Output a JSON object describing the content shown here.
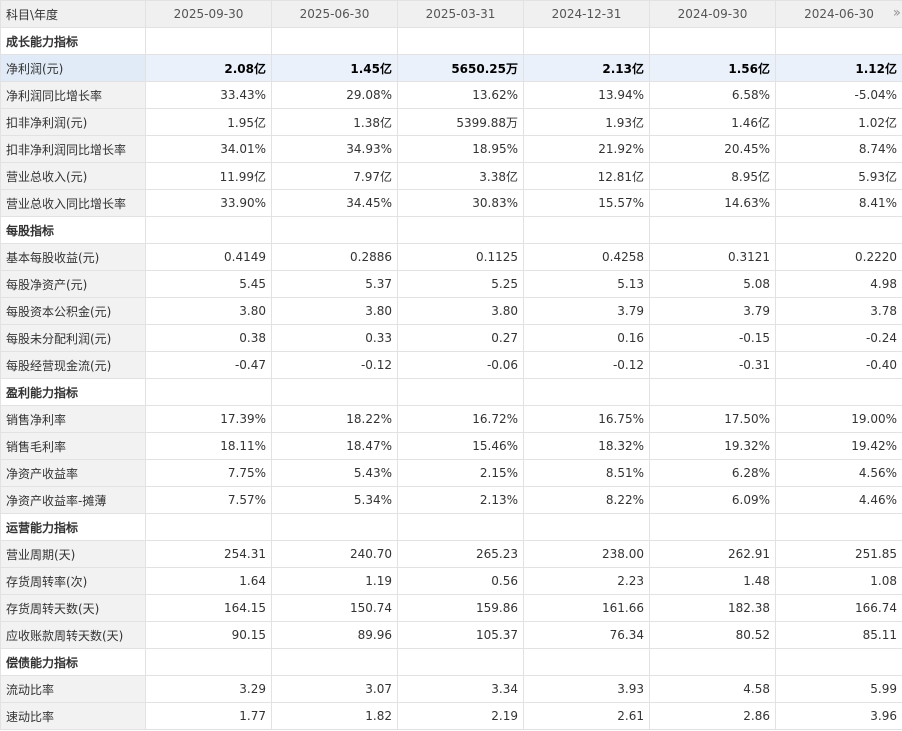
{
  "header": {
    "label": "科目\\年度",
    "periods": [
      "2025-09-30",
      "2025-06-30",
      "2025-03-31",
      "2024-12-31",
      "2024-09-30",
      "2024-06-30"
    ],
    "more_icon": "double-chevron-right-icon"
  },
  "rows": [
    {
      "type": "section",
      "label": "成长能力指标"
    },
    {
      "type": "data",
      "label": "净利润(元)",
      "highlight": true,
      "values": [
        "2.08亿",
        "1.45亿",
        "5650.25万",
        "2.13亿",
        "1.56亿",
        "1.12亿"
      ]
    },
    {
      "type": "data",
      "label": "净利润同比增长率",
      "values": [
        "33.43%",
        "29.08%",
        "13.62%",
        "13.94%",
        "6.58%",
        "-5.04%"
      ]
    },
    {
      "type": "data",
      "label": "扣非净利润(元)",
      "values": [
        "1.95亿",
        "1.38亿",
        "5399.88万",
        "1.93亿",
        "1.46亿",
        "1.02亿"
      ]
    },
    {
      "type": "data",
      "label": "扣非净利润同比增长率",
      "values": [
        "34.01%",
        "34.93%",
        "18.95%",
        "21.92%",
        "20.45%",
        "8.74%"
      ]
    },
    {
      "type": "data",
      "label": "营业总收入(元)",
      "values": [
        "11.99亿",
        "7.97亿",
        "3.38亿",
        "12.81亿",
        "8.95亿",
        "5.93亿"
      ]
    },
    {
      "type": "data",
      "label": "营业总收入同比增长率",
      "values": [
        "33.90%",
        "34.45%",
        "30.83%",
        "15.57%",
        "14.63%",
        "8.41%"
      ]
    },
    {
      "type": "section",
      "label": "每股指标"
    },
    {
      "type": "data",
      "label": "基本每股收益(元)",
      "values": [
        "0.4149",
        "0.2886",
        "0.1125",
        "0.4258",
        "0.3121",
        "0.2220"
      ]
    },
    {
      "type": "data",
      "label": "每股净资产(元)",
      "values": [
        "5.45",
        "5.37",
        "5.25",
        "5.13",
        "5.08",
        "4.98"
      ]
    },
    {
      "type": "data",
      "label": "每股资本公积金(元)",
      "values": [
        "3.80",
        "3.80",
        "3.80",
        "3.79",
        "3.79",
        "3.78"
      ]
    },
    {
      "type": "data",
      "label": "每股未分配利润(元)",
      "values": [
        "0.38",
        "0.33",
        "0.27",
        "0.16",
        "-0.15",
        "-0.24"
      ]
    },
    {
      "type": "data",
      "label": "每股经营现金流(元)",
      "values": [
        "-0.47",
        "-0.12",
        "-0.06",
        "-0.12",
        "-0.31",
        "-0.40"
      ]
    },
    {
      "type": "section",
      "label": "盈利能力指标"
    },
    {
      "type": "data",
      "label": "销售净利率",
      "values": [
        "17.39%",
        "18.22%",
        "16.72%",
        "16.75%",
        "17.50%",
        "19.00%"
      ]
    },
    {
      "type": "data",
      "label": "销售毛利率",
      "values": [
        "18.11%",
        "18.47%",
        "15.46%",
        "18.32%",
        "19.32%",
        "19.42%"
      ]
    },
    {
      "type": "data",
      "label": "净资产收益率",
      "values": [
        "7.75%",
        "5.43%",
        "2.15%",
        "8.51%",
        "6.28%",
        "4.56%"
      ]
    },
    {
      "type": "data",
      "label": "净资产收益率-摊薄",
      "values": [
        "7.57%",
        "5.34%",
        "2.13%",
        "8.22%",
        "6.09%",
        "4.46%"
      ]
    },
    {
      "type": "section",
      "label": "运营能力指标"
    },
    {
      "type": "data",
      "label": "营业周期(天)",
      "values": [
        "254.31",
        "240.70",
        "265.23",
        "238.00",
        "262.91",
        "251.85"
      ]
    },
    {
      "type": "data",
      "label": "存货周转率(次)",
      "values": [
        "1.64",
        "1.19",
        "0.56",
        "2.23",
        "1.48",
        "1.08"
      ]
    },
    {
      "type": "data",
      "label": "存货周转天数(天)",
      "values": [
        "164.15",
        "150.74",
        "159.86",
        "161.66",
        "182.38",
        "166.74"
      ]
    },
    {
      "type": "data",
      "label": "应收账款周转天数(天)",
      "values": [
        "90.15",
        "89.96",
        "105.37",
        "76.34",
        "80.52",
        "85.11"
      ]
    },
    {
      "type": "section",
      "label": "偿债能力指标"
    },
    {
      "type": "data",
      "label": "流动比率",
      "values": [
        "3.29",
        "3.07",
        "3.34",
        "3.93",
        "4.58",
        "5.99"
      ]
    },
    {
      "type": "data",
      "label": "速动比率",
      "values": [
        "1.77",
        "1.82",
        "2.19",
        "2.61",
        "2.86",
        "3.96"
      ]
    }
  ]
}
